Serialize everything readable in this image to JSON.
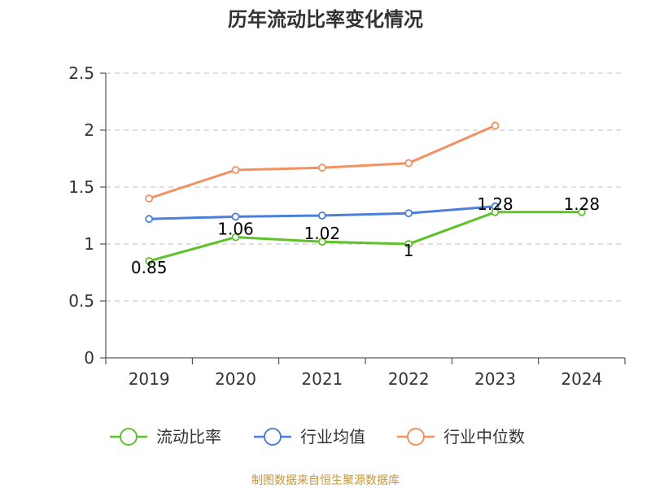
{
  "chart_data": {
    "type": "line",
    "title": "历年流动比率变化情况",
    "categories": [
      "2019",
      "2020",
      "2021",
      "2022",
      "2023",
      "2024"
    ],
    "ylim": [
      0,
      2.5
    ],
    "yticks": [
      "0",
      "0.5",
      "1",
      "1.5",
      "2",
      "2.5"
    ],
    "grid": true,
    "legend_position": "bottom",
    "series": [
      {
        "name": "流动比率",
        "values": [
          0.85,
          1.06,
          1.02,
          1.0,
          1.28,
          1.28
        ],
        "labels": [
          "0.85",
          "1.06",
          "1.02",
          "1",
          "1.28",
          "1.28"
        ],
        "color": "#5ec229"
      },
      {
        "name": "行业均值",
        "values": [
          1.22,
          1.24,
          1.25,
          1.27,
          1.33,
          null
        ],
        "color": "#4a7fdc"
      },
      {
        "name": "行业中位数",
        "values": [
          1.4,
          1.65,
          1.67,
          1.71,
          2.04,
          null
        ],
        "color": "#f59060"
      }
    ],
    "source": "制图数据来自恒生聚源数据库"
  }
}
